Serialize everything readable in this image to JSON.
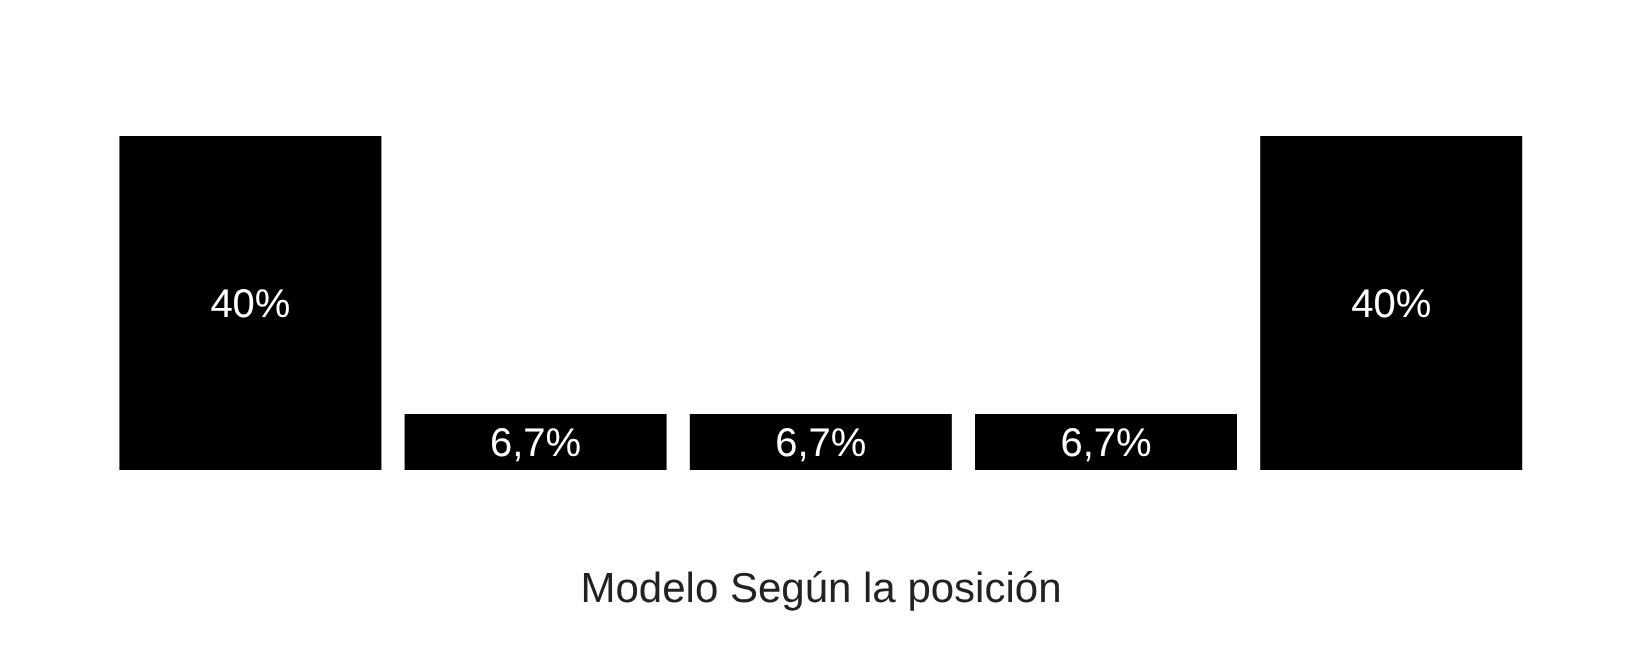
{
  "chart_data": {
    "type": "bar",
    "xlabel": "Modelo Según la posición",
    "categories": [
      null,
      null,
      null,
      null,
      null
    ],
    "values": [
      40,
      6.7,
      6.7,
      6.7,
      40
    ],
    "value_labels": [
      "40%",
      "6,7%",
      "6,7%",
      "6,7%",
      "40%"
    ],
    "color": "#000000"
  }
}
